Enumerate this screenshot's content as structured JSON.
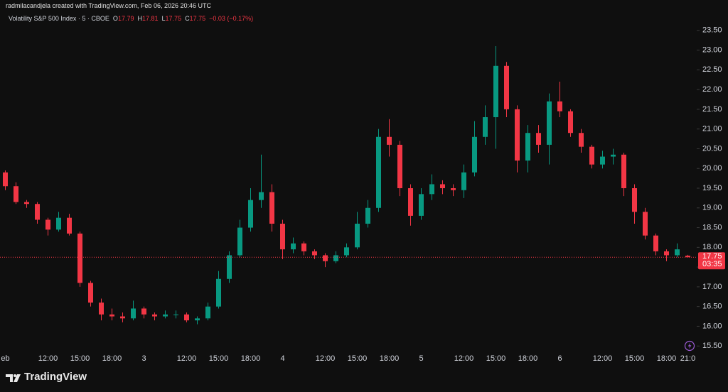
{
  "header": "radmilacandjela created with TradingView.com, Feb 06, 2026 20:46 UTC",
  "brand": "TradingView",
  "chart_data": {
    "type": "candlestick",
    "symbol": "Volatility S&P 500 Index · 5 · CBOE",
    "legend_letters": [
      "O",
      "H",
      "L",
      "C"
    ],
    "change": "−0.03 (−0.17%)",
    "countdown": "03:35",
    "up_color": "#089981",
    "down_color": "#f23645",
    "grid": false,
    "categories": [
      "eb",
      null,
      null,
      null,
      "12:00",
      null,
      null,
      "15:00",
      null,
      null,
      "18:00",
      null,
      null,
      "3",
      null,
      null,
      null,
      "12:00",
      null,
      null,
      "15:00",
      null,
      null,
      "18:00",
      null,
      null,
      "4",
      null,
      null,
      null,
      "12:00",
      null,
      null,
      "15:00",
      null,
      null,
      "18:00",
      null,
      null,
      "5",
      null,
      null,
      null,
      "12:00",
      null,
      null,
      "15:00",
      null,
      null,
      "18:00",
      null,
      null,
      "6",
      null,
      null,
      null,
      "12:00",
      null,
      null,
      "15:00",
      null,
      null,
      "18:00",
      null,
      "21:0"
    ],
    "open": [
      19.9,
      19.55,
      19.15,
      19.1,
      18.7,
      18.45,
      18.75,
      18.35,
      17.1,
      16.6,
      16.3,
      16.25,
      16.2,
      16.45,
      16.3,
      16.25,
      16.3,
      16.3,
      16.15,
      16.2,
      16.5,
      17.2,
      17.8,
      18.5,
      19.2,
      19.4,
      18.6,
      17.95,
      18.1,
      17.9,
      17.8,
      17.65,
      17.8,
      18.0,
      18.6,
      19.0,
      20.8,
      20.6,
      19.5,
      18.8,
      19.35,
      19.6,
      19.5,
      19.45,
      19.9,
      20.8,
      21.3,
      22.6,
      21.5,
      20.2,
      20.9,
      20.6,
      21.7,
      21.45,
      20.9,
      20.55,
      20.1,
      20.3,
      20.35,
      19.5,
      18.9,
      18.3,
      17.9,
      17.8,
      17.79
    ],
    "high": [
      19.95,
      19.65,
      19.2,
      19.15,
      18.75,
      18.9,
      18.85,
      18.4,
      17.15,
      16.7,
      16.45,
      16.35,
      16.65,
      16.5,
      16.35,
      16.4,
      16.4,
      16.35,
      16.25,
      16.6,
      17.4,
      17.9,
      18.7,
      19.5,
      20.35,
      19.6,
      18.7,
      18.25,
      18.15,
      17.95,
      17.85,
      17.9,
      18.1,
      18.9,
      19.2,
      21.0,
      21.25,
      20.7,
      19.6,
      19.5,
      19.85,
      19.7,
      19.6,
      20.1,
      21.2,
      21.6,
      23.1,
      22.7,
      21.6,
      21.1,
      21.1,
      21.9,
      22.2,
      21.5,
      21.0,
      20.6,
      20.45,
      20.5,
      20.4,
      19.6,
      19.0,
      18.35,
      17.95,
      18.1,
      17.81
    ],
    "low": [
      19.45,
      19.1,
      19.0,
      18.6,
      18.3,
      18.4,
      18.3,
      17.0,
      16.5,
      16.15,
      16.15,
      16.1,
      16.15,
      16.2,
      16.15,
      16.2,
      16.2,
      16.1,
      16.05,
      16.15,
      16.45,
      17.1,
      17.75,
      18.4,
      19.0,
      18.4,
      17.7,
      17.85,
      17.8,
      17.7,
      17.5,
      17.6,
      17.75,
      17.95,
      18.5,
      18.9,
      20.3,
      19.3,
      18.55,
      18.7,
      19.2,
      19.35,
      19.3,
      19.25,
      19.8,
      20.6,
      20.5,
      21.3,
      19.9,
      19.9,
      20.4,
      20.1,
      21.3,
      20.8,
      20.4,
      20.0,
      20.0,
      20.1,
      19.3,
      18.6,
      18.2,
      17.8,
      17.65,
      17.75,
      17.75
    ],
    "close": [
      19.55,
      19.15,
      19.1,
      18.7,
      18.45,
      18.75,
      18.35,
      17.1,
      16.6,
      16.3,
      16.25,
      16.2,
      16.45,
      16.3,
      16.25,
      16.3,
      16.3,
      16.15,
      16.2,
      16.5,
      17.2,
      17.8,
      18.5,
      19.2,
      19.4,
      18.6,
      17.95,
      18.1,
      17.9,
      17.8,
      17.65,
      17.8,
      18.0,
      18.6,
      19.0,
      20.8,
      20.6,
      19.5,
      18.8,
      19.35,
      19.6,
      19.5,
      19.45,
      19.9,
      20.8,
      21.3,
      22.6,
      21.5,
      20.2,
      20.9,
      20.6,
      21.7,
      21.45,
      20.9,
      20.55,
      20.1,
      20.3,
      20.35,
      19.5,
      18.9,
      18.3,
      17.9,
      17.8,
      17.95,
      17.75
    ],
    "ylim": [
      15.36,
      23.64
    ],
    "yticks": [
      {
        "value": 15.5,
        "label": "15.50"
      },
      {
        "value": 16,
        "label": "16.00"
      },
      {
        "value": 16.5,
        "label": "16.50"
      },
      {
        "value": 17,
        "label": "17.00"
      },
      {
        "value": 17.5,
        "label": "17.50"
      },
      {
        "value": 18,
        "label": "18.00"
      },
      {
        "value": 18.5,
        "label": "18.50"
      },
      {
        "value": 19,
        "label": "19.00"
      },
      {
        "value": 19.5,
        "label": "19.50"
      },
      {
        "value": 20,
        "label": "20.00"
      },
      {
        "value": 20.5,
        "label": "20.50"
      },
      {
        "value": 21,
        "label": "21.00"
      },
      {
        "value": 21.5,
        "label": "21.50"
      },
      {
        "value": 22,
        "label": "22.00"
      },
      {
        "value": 22.5,
        "label": "22.50"
      },
      {
        "value": 23,
        "label": "23.00"
      },
      {
        "value": 23.5,
        "label": "23.50"
      }
    ]
  }
}
